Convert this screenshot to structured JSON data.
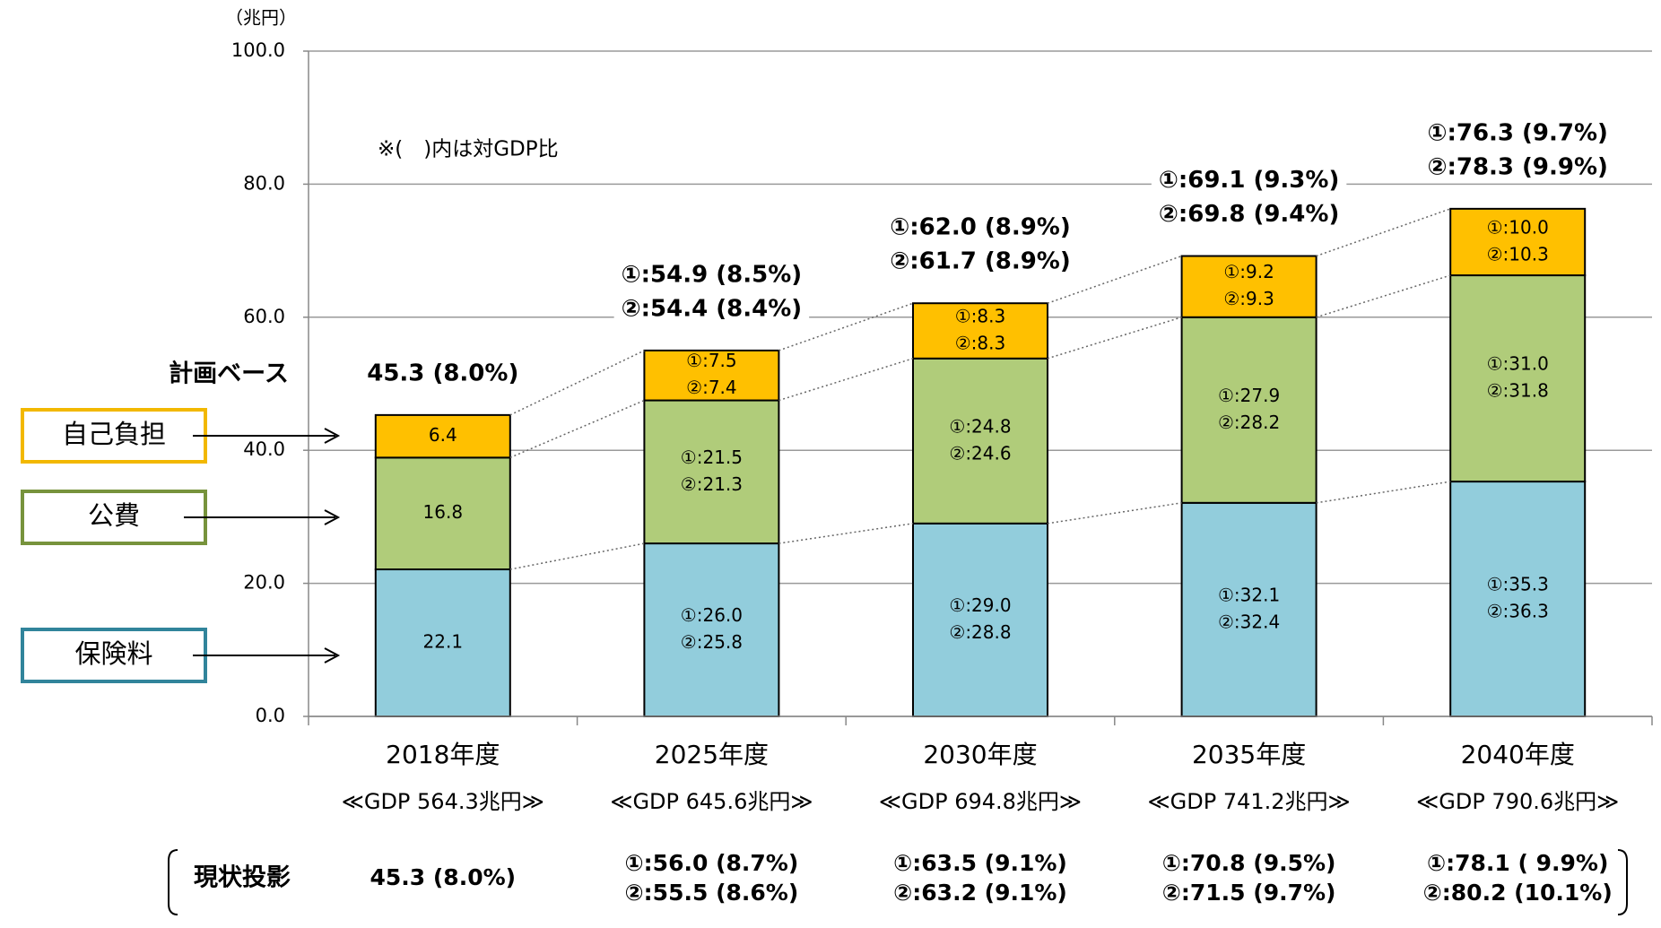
{
  "chart_data": {
    "type": "stacked_bar",
    "y_unit": "（兆円）",
    "annotation": "※(　)内は対GDP比",
    "categories": [
      "2018年度",
      "2025年度",
      "2030年度",
      "2035年度",
      "2040年度"
    ],
    "gdp_labels": [
      "≪GDP 564.3兆円≫",
      "≪GDP 645.6兆円≫",
      "≪GDP 694.8兆円≫",
      "≪GDP 741.2兆円≫",
      "≪GDP 790.6兆円≫"
    ],
    "series": [
      {
        "name": "保険料",
        "color": "#92cddc",
        "border_color": "#31849b",
        "values": [
          22.1,
          26.0,
          29.0,
          32.1,
          35.3
        ],
        "value_labels": [
          "22.1",
          "①:26.0",
          "①:29.0",
          "①:32.1",
          "①:35.3"
        ],
        "values_2": [
          null,
          25.8,
          28.8,
          32.4,
          36.3
        ],
        "value_labels_2": [
          null,
          "②:25.8",
          "②:28.8",
          "②:32.4",
          "②:36.3"
        ]
      },
      {
        "name": "公費",
        "color": "#b0cc7a",
        "border_color": "#77933c",
        "values": [
          16.8,
          21.5,
          24.8,
          27.9,
          31.0
        ],
        "value_labels": [
          "16.8",
          "①:21.5",
          "①:24.8",
          "①:27.9",
          "①:31.0"
        ],
        "values_2": [
          null,
          21.3,
          24.6,
          28.2,
          31.8
        ],
        "value_labels_2": [
          null,
          "②:21.3",
          "②:24.6",
          "②:28.2",
          "②:31.8"
        ]
      },
      {
        "name": "自己負担",
        "color": "#ffc000",
        "border_color": "#f2b800",
        "values": [
          6.4,
          7.5,
          8.3,
          9.2,
          10.0
        ],
        "value_labels": [
          "6.4",
          "①:7.5",
          "①:8.3",
          "①:9.2",
          "①:10.0"
        ],
        "values_2": [
          null,
          7.4,
          8.3,
          9.3,
          10.3
        ],
        "value_labels_2": [
          null,
          "②:7.4",
          "②:8.3",
          "②:9.3",
          "②:10.3"
        ]
      }
    ],
    "plan_base": {
      "label": "計画ベース",
      "totals": [
        [
          "45.3 (8.0%)"
        ],
        [
          "①:54.9 (8.5%)",
          "②:54.4 (8.4%)"
        ],
        [
          "①:62.0 (8.9%)",
          "②:61.7 (8.9%)"
        ],
        [
          "①:69.1 (9.3%)",
          "②:69.8 (9.4%)"
        ],
        [
          "①:76.3 (9.7%)",
          "②:78.3 (9.9%)"
        ]
      ]
    },
    "current_projection": {
      "label": "現状投影",
      "totals": [
        [
          "45.3 (8.0%)"
        ],
        [
          "①:56.0 (8.7%)",
          "②:55.5 (8.6%)"
        ],
        [
          "①:63.5 (9.1%)",
          "②:63.2 (9.1%)"
        ],
        [
          "①:70.8 (9.5%)",
          "②:71.5 (9.7%)"
        ],
        [
          "①:78.1  ( 9.9%)",
          "②:80.2 (10.1%)"
        ]
      ]
    },
    "ylim": [
      0,
      100
    ],
    "yticks": [
      {
        "value": 0,
        "label": "0.0"
      },
      {
        "value": 20,
        "label": "20.0"
      },
      {
        "value": 40,
        "label": "40.0"
      },
      {
        "value": 60,
        "label": "60.0"
      },
      {
        "value": 80,
        "label": "80.0"
      },
      {
        "value": 100,
        "label": "100.0"
      }
    ],
    "grid": true
  }
}
